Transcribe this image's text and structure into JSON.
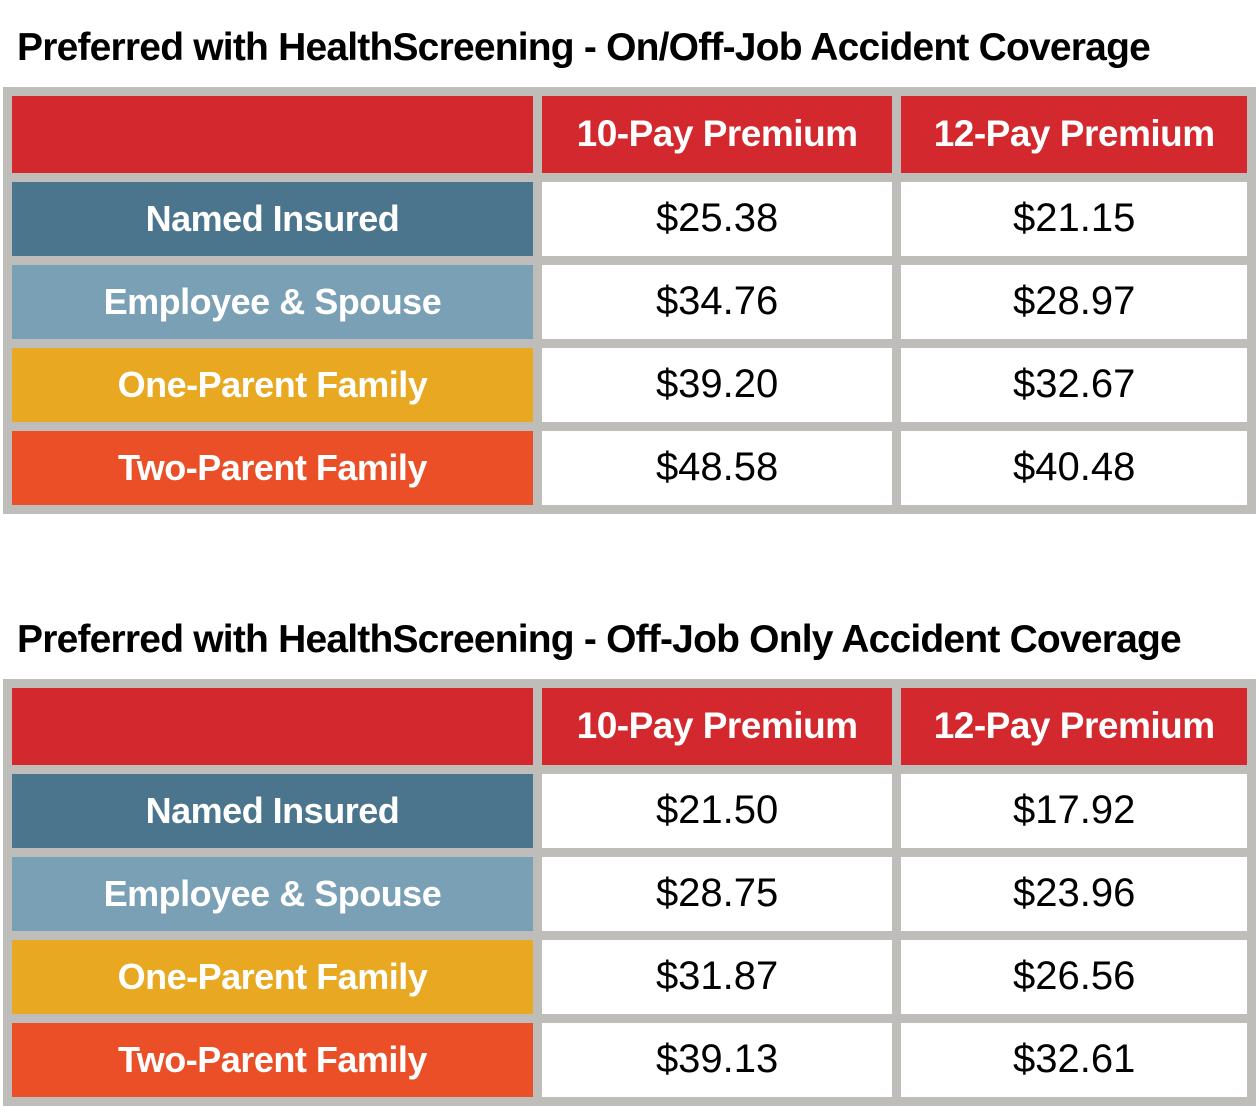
{
  "document": {
    "background": "#ffffff"
  },
  "colors": {
    "header_red": "#d2282e",
    "named_insured_blue": "#4a758c",
    "employee_spouse_blue": "#7aa0b6",
    "one_parent_gold": "#e8a821",
    "two_parent_orange": "#eb4f27",
    "grid_gray": "#bfbdba",
    "header_text": "#ffffff",
    "value_text": "#000000",
    "title_text": "#000000"
  },
  "tables": [
    {
      "title": "Preferred with HealthScreening - On/Off-Job Accident Coverage",
      "columns": [
        "",
        "10-Pay Premium",
        "12-Pay Premium"
      ],
      "rows": [
        {
          "label": "Named Insured",
          "label_bg": "#4a758c",
          "values": [
            "$25.38",
            "$21.15"
          ]
        },
        {
          "label": "Employee & Spouse",
          "label_bg": "#7aa0b6",
          "values": [
            "$34.76",
            "$28.97"
          ]
        },
        {
          "label": "One-Parent Family",
          "label_bg": "#e8a821",
          "values": [
            "$39.20",
            "$32.67"
          ]
        },
        {
          "label": "Two-Parent Family",
          "label_bg": "#eb4f27",
          "values": [
            "$48.58",
            "$40.48"
          ]
        }
      ]
    },
    {
      "title": "Preferred with HealthScreening - Off-Job Only Accident Coverage",
      "columns": [
        "",
        "10-Pay Premium",
        "12-Pay Premium"
      ],
      "rows": [
        {
          "label": "Named Insured",
          "label_bg": "#4a758c",
          "values": [
            "$21.50",
            "$17.92"
          ]
        },
        {
          "label": "Employee & Spouse",
          "label_bg": "#7aa0b6",
          "values": [
            "$28.75",
            "$23.96"
          ]
        },
        {
          "label": "One-Parent Family",
          "label_bg": "#e8a821",
          "values": [
            "$31.87",
            "$26.56"
          ]
        },
        {
          "label": "Two-Parent Family",
          "label_bg": "#eb4f27",
          "values": [
            "$39.13",
            "$32.61"
          ]
        }
      ]
    }
  ]
}
